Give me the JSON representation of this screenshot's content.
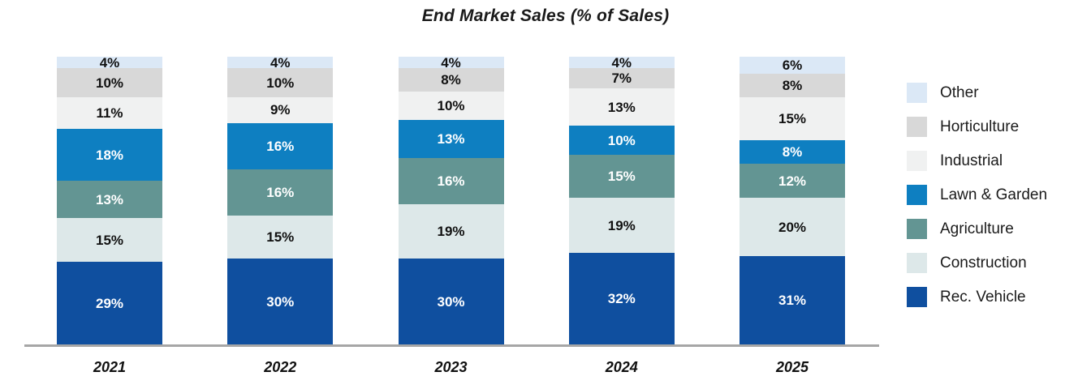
{
  "title": "End Market Sales (% of Sales)",
  "chart_data": {
    "type": "bar",
    "stacked": true,
    "title": "End Market Sales (% of Sales)",
    "categories": [
      "2021",
      "2022",
      "2023",
      "2024",
      "2025"
    ],
    "series": [
      {
        "name": "Other",
        "color": "#dbe8f6",
        "label_color": "#111111",
        "values": [
          4,
          4,
          4,
          4,
          6
        ]
      },
      {
        "name": "Horticulture",
        "color": "#d8d8d8",
        "label_color": "#111111",
        "values": [
          10,
          10,
          8,
          7,
          8
        ]
      },
      {
        "name": "Industrial",
        "color": "#f0f1f1",
        "label_color": "#111111",
        "values": [
          11,
          9,
          10,
          13,
          15
        ]
      },
      {
        "name": "Lawn & Garden",
        "color": "#0e7fc1",
        "label_color": "#ffffff",
        "values": [
          18,
          16,
          13,
          10,
          8
        ]
      },
      {
        "name": "Agriculture",
        "color": "#639593",
        "label_color": "#ffffff",
        "values": [
          13,
          16,
          16,
          15,
          12
        ]
      },
      {
        "name": "Construction",
        "color": "#dde8e9",
        "label_color": "#111111",
        "values": [
          15,
          15,
          19,
          19,
          20
        ]
      },
      {
        "name": "Rec. Vehicle",
        "color": "#0f4f9f",
        "label_color": "#ffffff",
        "values": [
          29,
          30,
          30,
          32,
          31
        ]
      }
    ],
    "value_suffix": "%",
    "ylim": [
      0,
      100
    ],
    "grid": false,
    "legend_position": "right",
    "axis_line_color": "#a6a6a6"
  }
}
